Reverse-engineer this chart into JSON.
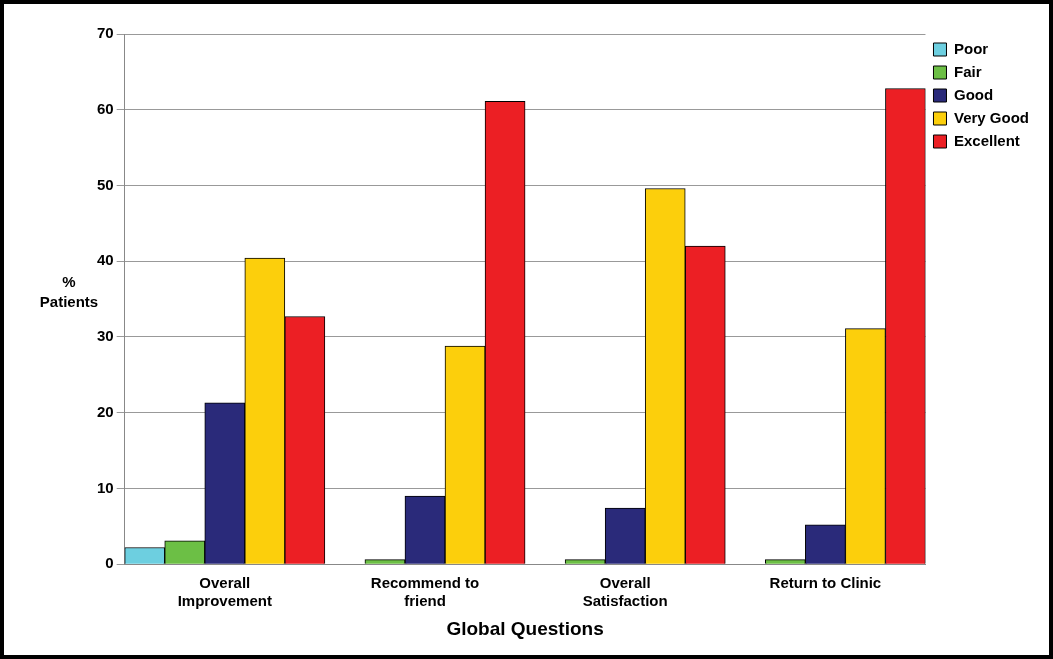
{
  "chart_data": {
    "type": "bar",
    "xlabel": "Global Questions",
    "ylabel": "% Patients",
    "categories": [
      "Overall Improvement",
      "Recommend to friend",
      "Overall Satisfaction",
      "Return to Clinic"
    ],
    "series": [
      {
        "name": "Poor",
        "color": "#6dcfe0",
        "values": [
          2.2,
          0,
          0,
          0
        ]
      },
      {
        "name": "Fair",
        "color": "#6cbf45",
        "values": [
          3.1,
          0.6,
          0.6,
          0.6
        ]
      },
      {
        "name": "Good",
        "color": "#2a2a7a",
        "values": [
          21.3,
          9.0,
          7.4,
          5.2
        ]
      },
      {
        "name": "Very Good",
        "color": "#fccf0c",
        "values": [
          40.4,
          28.8,
          49.6,
          31.1
        ]
      },
      {
        "name": "Excellent",
        "color": "#ec1f24",
        "values": [
          32.7,
          61.1,
          42.0,
          62.8
        ]
      }
    ],
    "ylim": [
      0,
      70
    ],
    "yticks": [
      0,
      10,
      20,
      30,
      40,
      50,
      60,
      70
    ],
    "grid": "y",
    "legend": "top right"
  }
}
